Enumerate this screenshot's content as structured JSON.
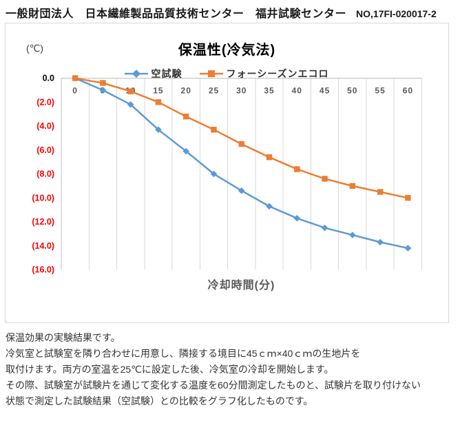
{
  "header": {
    "org": "一般財団法人　日本繊維製品品質技術センター　福井試験センター",
    "report_no": "NO,17FI-020017-2"
  },
  "chart_data": {
    "type": "line",
    "title": "保温性(冷気法)",
    "y_unit_label": "(℃)",
    "xlabel": "冷却時間(分)",
    "categories": [
      "0",
      "5",
      "10",
      "15",
      "20",
      "25",
      "30",
      "35",
      "40",
      "45",
      "50",
      "55",
      "60"
    ],
    "series": [
      {
        "name": "空試験",
        "marker": "diamond",
        "color": "#5B9BD5",
        "values": [
          0.0,
          -1.0,
          -2.2,
          -4.3,
          -6.1,
          -8.0,
          -9.4,
          -10.7,
          -11.7,
          -12.5,
          -13.1,
          -13.7,
          -14.2
        ]
      },
      {
        "name": "フォーシーズンエコロ",
        "marker": "square",
        "color": "#ED7D31",
        "values": [
          0.0,
          -0.4,
          -1.1,
          -2.0,
          -3.2,
          -4.3,
          -5.5,
          -6.6,
          -7.6,
          -8.4,
          -9.0,
          -9.5,
          -10.0
        ]
      }
    ],
    "ylim": [
      -16,
      0
    ],
    "y_tick_labels": [
      "0.0",
      "(2.0)",
      "(4.0)",
      "(6.0)",
      "(8.0)",
      "(10.0)",
      "(12.0)",
      "(14.0)",
      "(16.0)"
    ],
    "grid": "vertical-major-only",
    "legend_position": "top"
  },
  "colors": {
    "gridline": "#D9D9D9",
    "axis_line": "#BFBFBF",
    "tick_label": "#595959",
    "zero_label": "#000000",
    "negative_label": "#FF0000",
    "chart_border": "#D9D9D9"
  },
  "description": {
    "lines": [
      "保温効果の実験結果です。",
      "冷気室と試験室を隣り合わせに用意し、隣接する境目に45ｃｍ×40ｃｍの生地片を",
      "取付けます。両方の室温を25℃に設定した後、冷気室の冷却を開始します。",
      "その際、試験室が試験片を通じて変化する温度を60分間測定したものと、試験片を取り付けない",
      "状態で測定した試験結果（空試験）との比較をグラフ化したものです。"
    ]
  }
}
